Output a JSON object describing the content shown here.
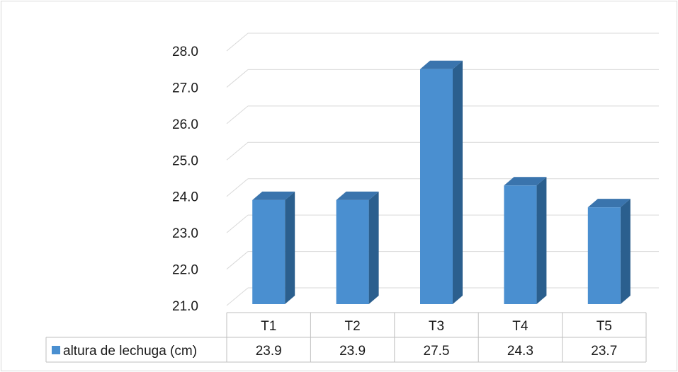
{
  "chart_data": {
    "type": "bar",
    "categories": [
      "T1",
      "T2",
      "T3",
      "T4",
      "T5"
    ],
    "series": [
      {
        "name": "altura de lechuga (cm)",
        "values": [
          23.9,
          23.9,
          27.5,
          24.3,
          23.7
        ],
        "value_labels": [
          "23.9",
          "23.9",
          "27.5",
          "24.3",
          "23.7"
        ]
      }
    ],
    "ylim": [
      21.0,
      28.0
    ],
    "yticks": [
      "21.0",
      "22.0",
      "23.0",
      "24.0",
      "25.0",
      "26.0",
      "27.0",
      "28.0"
    ],
    "title": "",
    "xlabel": "",
    "ylabel": "",
    "grid": true,
    "legend": "data-table",
    "style": "3d-column",
    "colors": {
      "bar_front": "#4a8fd0",
      "bar_side": "#2b5f8e",
      "bar_top": "#3a74ad",
      "grid": "#d9d9d9",
      "table_border": "#bfbfbf"
    }
  }
}
